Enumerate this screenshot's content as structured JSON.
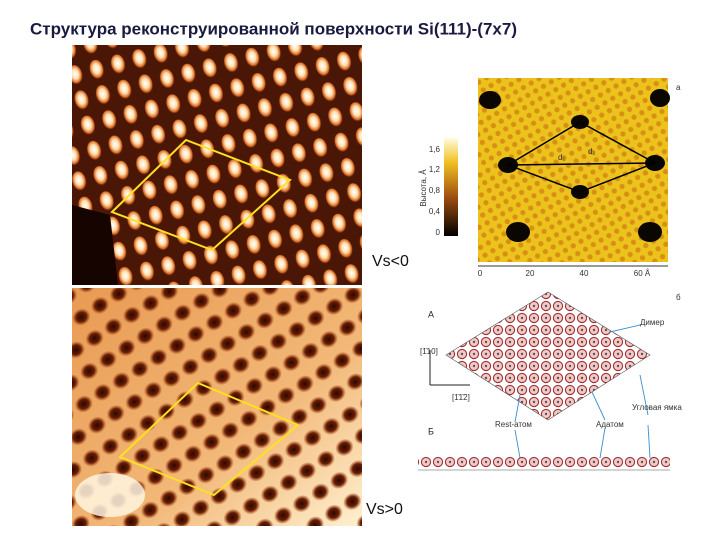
{
  "title": "Структура реконструированной поверхности Si(111)-(7x7)",
  "stm_images": {
    "negative_bias_label": "Vs<0",
    "positive_bias_label": "Vs>0"
  },
  "height_map": {
    "panel_letter": "а",
    "y_axis_label": "Высота, Å",
    "y_ticks": [
      "1,6",
      "1,2",
      "0,8",
      "0,4",
      "0"
    ],
    "x_ticks": [
      "0",
      "20",
      "40",
      "60 Å"
    ],
    "distance_labels": [
      "d₁",
      "d₂"
    ]
  },
  "atomic_model": {
    "panel_letter": "б",
    "top_view_label": "А",
    "side_view_label": "Б",
    "direction_labels": [
      "[1̄10]",
      "[1̄1̄2]"
    ],
    "annotations": [
      "Димер",
      "Rest-атом",
      "Адатом",
      "Угловая ямка"
    ]
  }
}
